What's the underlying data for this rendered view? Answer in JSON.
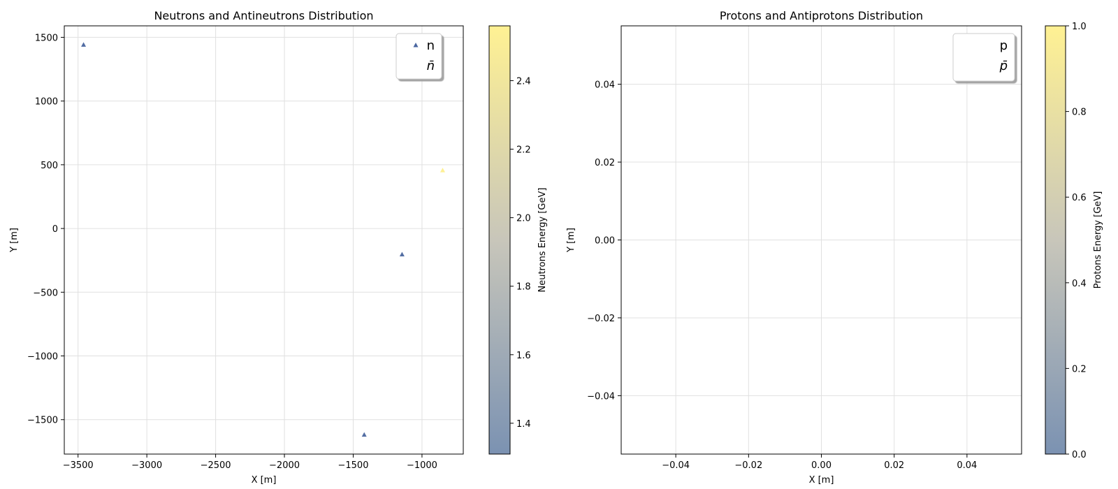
{
  "chart_data": [
    {
      "type": "scatter",
      "title": "Neutrons and Antineutrons Distribution",
      "xlabel": "X [m]",
      "ylabel": "Y [m]",
      "xlim": [
        -3600,
        -700
      ],
      "ylim": [
        -1770,
        1590
      ],
      "xticks": [
        -3500,
        -3000,
        -2500,
        -2000,
        -1500,
        -1000
      ],
      "xtick_labels": [
        "−3500",
        "−3000",
        "−2500",
        "−2000",
        "−1500",
        "−1000"
      ],
      "yticks": [
        1500,
        1000,
        500,
        0,
        -500,
        -1000,
        -1500
      ],
      "ytick_labels": [
        "1500",
        "1000",
        "500",
        "0",
        "−500",
        "−1000",
        "−1500"
      ],
      "grid": true,
      "legend": {
        "location": "top-right",
        "entries": [
          "n",
          "n̄"
        ]
      },
      "series": [
        {
          "name": "n",
          "marker": "triangle",
          "points": [
            {
              "x": -3460,
              "y": 1440,
              "energy": 1.4
            },
            {
              "x": -1145,
              "y": -205,
              "energy": 1.42
            },
            {
              "x": -1420,
              "y": -1620,
              "energy": 1.42
            },
            {
              "x": -850,
              "y": 455,
              "energy": 2.55
            }
          ]
        },
        {
          "name": "n̄",
          "marker": "triangle",
          "points": []
        }
      ],
      "colorbar": {
        "label": "Neutrons Energy [GeV]",
        "range": [
          1.31,
          2.56
        ],
        "ticks": [
          1.4,
          1.6,
          1.8,
          2.0,
          2.2,
          2.4
        ],
        "tick_labels": [
          "1.4",
          "1.6",
          "1.8",
          "2.0",
          "2.2",
          "2.4"
        ],
        "colors": [
          "#7b92b2",
          "#fff193"
        ]
      }
    },
    {
      "type": "scatter",
      "title": "Protons and Antiprotons Distribution",
      "xlabel": "X [m]",
      "ylabel": "Y [m]",
      "xlim": [
        -0.055,
        0.055
      ],
      "ylim": [
        -0.055,
        0.055
      ],
      "xticks": [
        -0.04,
        -0.02,
        0.0,
        0.02,
        0.04
      ],
      "xtick_labels": [
        "−0.04",
        "−0.02",
        "0.00",
        "0.02",
        "0.04"
      ],
      "yticks": [
        0.04,
        0.02,
        0.0,
        -0.02,
        -0.04
      ],
      "ytick_labels": [
        "0.04",
        "0.02",
        "0.00",
        "−0.02",
        "−0.04"
      ],
      "grid": true,
      "legend": {
        "location": "top-right",
        "entries": [
          "p",
          "p̄"
        ]
      },
      "series": [
        {
          "name": "p",
          "marker": "triangle",
          "points": []
        },
        {
          "name": "p̄",
          "marker": "triangle",
          "points": []
        }
      ],
      "colorbar": {
        "label": "Protons Energy [GeV]",
        "range": [
          0.0,
          1.0
        ],
        "ticks": [
          0.0,
          0.2,
          0.4,
          0.6,
          0.8,
          1.0
        ],
        "tick_labels": [
          "0.0",
          "0.2",
          "0.4",
          "0.6",
          "0.8",
          "1.0"
        ],
        "colors": [
          "#7b92b2",
          "#fff193"
        ]
      }
    }
  ]
}
